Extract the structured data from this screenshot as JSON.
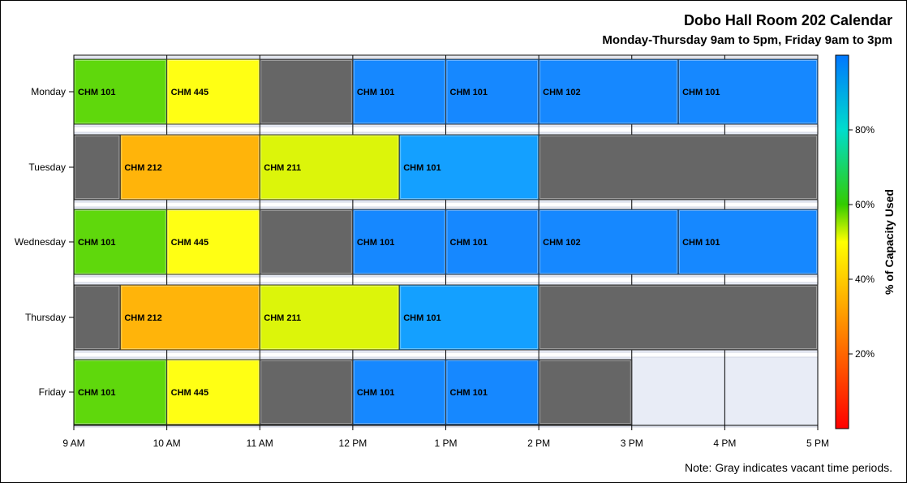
{
  "chart_data": {
    "type": "bar",
    "orientation": "horizontal-timeline",
    "title": "Dobo Hall Room 202 Calendar",
    "subtitle": "Monday-Thursday 9am to 5pm, Friday 9am to 3pm",
    "footnote": "Note: Gray indicates vacant time periods.",
    "xlim": [
      9,
      17
    ],
    "x_ticks": [
      {
        "value": 9,
        "label": "9 AM"
      },
      {
        "value": 10,
        "label": "10 AM"
      },
      {
        "value": 11,
        "label": "11 AM"
      },
      {
        "value": 12,
        "label": "12 PM"
      },
      {
        "value": 13,
        "label": "1 PM"
      },
      {
        "value": 14,
        "label": "2 PM"
      },
      {
        "value": 15,
        "label": "3 PM"
      },
      {
        "value": 16,
        "label": "4 PM"
      },
      {
        "value": 17,
        "label": "5 PM"
      }
    ],
    "days": [
      "Monday",
      "Tuesday",
      "Wednesday",
      "Thursday",
      "Friday"
    ],
    "vacant_color": "#666666",
    "bookings": {
      "Monday": [
        {
          "start": 9,
          "end": 10,
          "course": "CHM 101",
          "color": "#5fd80c"
        },
        {
          "start": 10,
          "end": 11,
          "course": "CHM 445",
          "color": "#ffff14"
        },
        {
          "start": 11,
          "end": 12,
          "course": "",
          "color": "#666666"
        },
        {
          "start": 12,
          "end": 13,
          "course": "CHM 101",
          "color": "#1688ff"
        },
        {
          "start": 13,
          "end": 14,
          "course": "CHM 101",
          "color": "#1688ff"
        },
        {
          "start": 14,
          "end": 15.5,
          "course": "CHM 102",
          "color": "#1688ff"
        },
        {
          "start": 15.5,
          "end": 17,
          "course": "CHM 101",
          "color": "#1688ff"
        }
      ],
      "Tuesday": [
        {
          "start": 9,
          "end": 9.5,
          "course": "",
          "color": "#666666"
        },
        {
          "start": 9.5,
          "end": 11,
          "course": "CHM 212",
          "color": "#ffb40a"
        },
        {
          "start": 11,
          "end": 12.5,
          "course": "CHM 211",
          "color": "#dcf50a"
        },
        {
          "start": 12.5,
          "end": 14,
          "course": "CHM 101",
          "color": "#14a0ff"
        },
        {
          "start": 14,
          "end": 17,
          "course": "",
          "color": "#666666"
        }
      ],
      "Wednesday": [
        {
          "start": 9,
          "end": 10,
          "course": "CHM 101",
          "color": "#5fd80c"
        },
        {
          "start": 10,
          "end": 11,
          "course": "CHM 445",
          "color": "#ffff14"
        },
        {
          "start": 11,
          "end": 12,
          "course": "",
          "color": "#666666"
        },
        {
          "start": 12,
          "end": 13,
          "course": "CHM 101",
          "color": "#1688ff"
        },
        {
          "start": 13,
          "end": 14,
          "course": "CHM 101",
          "color": "#1688ff"
        },
        {
          "start": 14,
          "end": 15.5,
          "course": "CHM 102",
          "color": "#1688ff"
        },
        {
          "start": 15.5,
          "end": 17,
          "course": "CHM 101",
          "color": "#1688ff"
        }
      ],
      "Thursday": [
        {
          "start": 9,
          "end": 9.5,
          "course": "",
          "color": "#666666"
        },
        {
          "start": 9.5,
          "end": 11,
          "course": "CHM 212",
          "color": "#ffb40a"
        },
        {
          "start": 11,
          "end": 12.5,
          "course": "CHM 211",
          "color": "#dcf50a"
        },
        {
          "start": 12.5,
          "end": 14,
          "course": "CHM 101",
          "color": "#14a0ff"
        },
        {
          "start": 14,
          "end": 17,
          "course": "",
          "color": "#666666"
        }
      ],
      "Friday": [
        {
          "start": 9,
          "end": 10,
          "course": "CHM 101",
          "color": "#5fd80c"
        },
        {
          "start": 10,
          "end": 11,
          "course": "CHM 445",
          "color": "#ffff14"
        },
        {
          "start": 11,
          "end": 12,
          "course": "",
          "color": "#666666"
        },
        {
          "start": 12,
          "end": 13,
          "course": "CHM 101",
          "color": "#1688ff"
        },
        {
          "start": 13,
          "end": 14,
          "course": "CHM 101",
          "color": "#1688ff"
        },
        {
          "start": 14,
          "end": 15,
          "course": "",
          "color": "#666666"
        }
      ]
    },
    "colorbar": {
      "title": "% of Capacity Used",
      "range": [
        0,
        100
      ],
      "ticks": [
        {
          "value": 20,
          "label": "20%"
        },
        {
          "value": 40,
          "label": "40%"
        },
        {
          "value": 60,
          "label": "60%"
        },
        {
          "value": 80,
          "label": "80%"
        }
      ],
      "stops": [
        {
          "value": 0,
          "color": "#ff0000"
        },
        {
          "value": 40,
          "color": "#ffcc00"
        },
        {
          "value": 50,
          "color": "#ffff00"
        },
        {
          "value": 60,
          "color": "#33cc00"
        },
        {
          "value": 80,
          "color": "#00ddcc"
        },
        {
          "value": 100,
          "color": "#0077ff"
        }
      ]
    }
  }
}
